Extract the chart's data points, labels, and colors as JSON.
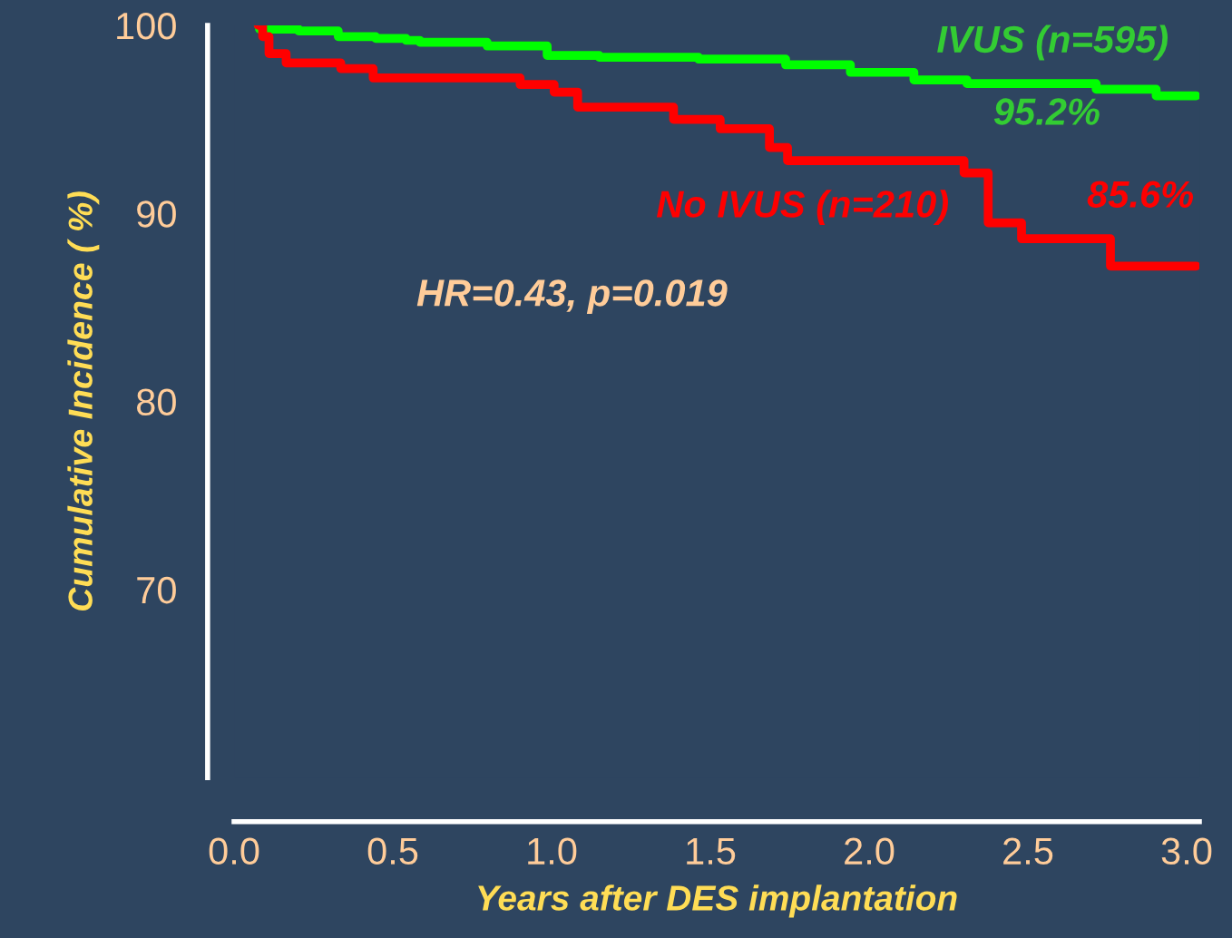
{
  "chart_data": {
    "type": "step",
    "xlabel": "Years after DES implantation",
    "ylabel": "Cumulative Incidence ( %)",
    "xlim": [
      0,
      3.04
    ],
    "ylim": [
      60,
      100
    ],
    "xticks": [
      {
        "value": 0,
        "label": "0.0"
      },
      0.5,
      {
        "value": 1,
        "label": "1.0"
      },
      1.5,
      {
        "value": 2,
        "label": "2.0"
      },
      2.5,
      {
        "value": 3,
        "label": "3.0"
      }
    ],
    "yticks": [
      70,
      80,
      90,
      100
    ],
    "series": [
      {
        "name": "IVUS (n=595)",
        "color": "#00ff00",
        "x": [
          0.076,
          0.08,
          0.203,
          0.328,
          0.446,
          0.542,
          0.585,
          0.797,
          0.986,
          1.15,
          1.463,
          1.737,
          1.941,
          2.141,
          2.308,
          2.715,
          2.904,
          3.03
        ],
        "values": [
          100,
          99.8,
          99.7,
          99.4,
          99.3,
          99.2,
          99.1,
          98.9,
          98.4,
          98.3,
          98.2,
          97.9,
          97.5,
          97.1,
          96.9,
          96.6,
          96.25,
          96.25
        ]
      },
      {
        "name": "No IVUS (n=210)",
        "color": "#ff0000",
        "x": [
          0.076,
          0.09,
          0.11,
          0.164,
          0.336,
          0.438,
          0.901,
          1.008,
          1.082,
          1.384,
          1.531,
          1.686,
          1.743,
          2.299,
          2.375,
          2.48,
          2.76,
          3.03
        ],
        "values": [
          100,
          99.4,
          98.5,
          98.0,
          97.7,
          97.2,
          96.85,
          96.45,
          95.65,
          95.0,
          94.5,
          93.5,
          92.8,
          92.15,
          89.5,
          88.65,
          87.2,
          87.2
        ]
      }
    ],
    "annotations": [
      "95.2%",
      "85.6%",
      "HR=0.43, p=0.019"
    ],
    "grid": false,
    "legend": false
  }
}
